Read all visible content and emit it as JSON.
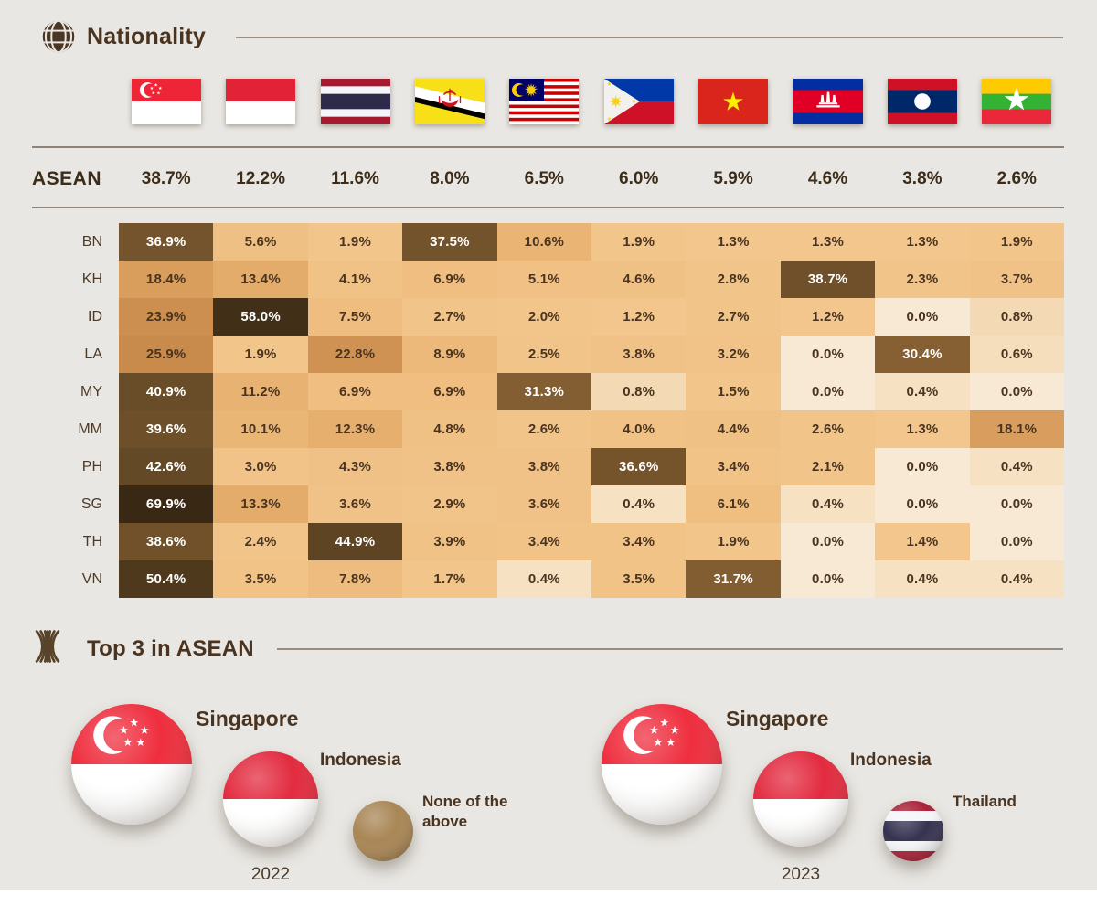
{
  "colors": {
    "background": "#e9e7e3",
    "text_brown": "#4a3420",
    "divider": "#8d8379",
    "heatmap_low": "#f7e9d3",
    "heatmap_base": "#efc084",
    "heatmap_high": "#281d0e",
    "none_circle": "#a5814e"
  },
  "header": {
    "title": "Nationality",
    "icon": "globe-icon"
  },
  "chart_data": {
    "type": "heatmap",
    "title": "Nationality",
    "value_format": "percent_1dp",
    "columns": [
      {
        "name": "Singapore",
        "code": "sg",
        "icon": "flag-singapore"
      },
      {
        "name": "Indonesia",
        "code": "id",
        "icon": "flag-indonesia"
      },
      {
        "name": "Thailand",
        "code": "th",
        "icon": "flag-thailand"
      },
      {
        "name": "Brunei",
        "code": "bn",
        "icon": "flag-brunei"
      },
      {
        "name": "Malaysia",
        "code": "my",
        "icon": "flag-malaysia"
      },
      {
        "name": "Philippines",
        "code": "ph",
        "icon": "flag-philippines"
      },
      {
        "name": "Vietnam",
        "code": "vn",
        "icon": "flag-vietnam"
      },
      {
        "name": "Cambodia",
        "code": "kh",
        "icon": "flag-cambodia"
      },
      {
        "name": "Laos",
        "code": "la",
        "icon": "flag-laos"
      },
      {
        "name": "Myanmar",
        "code": "mm",
        "icon": "flag-myanmar"
      }
    ],
    "asean_row": {
      "label": "ASEAN",
      "values": [
        38.7,
        12.2,
        11.6,
        8.0,
        6.5,
        6.0,
        5.9,
        4.6,
        3.8,
        2.6
      ]
    },
    "rows": [
      {
        "label": "BN",
        "values": [
          36.9,
          5.6,
          1.9,
          37.5,
          10.6,
          1.9,
          1.3,
          1.3,
          1.3,
          1.9
        ]
      },
      {
        "label": "KH",
        "values": [
          18.4,
          13.4,
          4.1,
          6.9,
          5.1,
          4.6,
          2.8,
          38.7,
          2.3,
          3.7
        ]
      },
      {
        "label": "ID",
        "values": [
          23.9,
          58.0,
          7.5,
          2.7,
          2.0,
          1.2,
          2.7,
          1.2,
          0.0,
          0.8
        ]
      },
      {
        "label": "LA",
        "values": [
          25.9,
          1.9,
          22.8,
          8.9,
          2.5,
          3.8,
          3.2,
          0.0,
          30.4,
          0.6
        ]
      },
      {
        "label": "MY",
        "values": [
          40.9,
          11.2,
          6.9,
          6.9,
          31.3,
          0.8,
          1.5,
          0.0,
          0.4,
          0.0
        ]
      },
      {
        "label": "MM",
        "values": [
          39.6,
          10.1,
          12.3,
          4.8,
          2.6,
          4.0,
          4.4,
          2.6,
          1.3,
          18.1
        ]
      },
      {
        "label": "PH",
        "values": [
          42.6,
          3.0,
          4.3,
          3.8,
          3.8,
          36.6,
          3.4,
          2.1,
          0.0,
          0.4
        ]
      },
      {
        "label": "SG",
        "values": [
          69.9,
          13.3,
          3.6,
          2.9,
          3.6,
          0.4,
          6.1,
          0.4,
          0.0,
          0.0
        ]
      },
      {
        "label": "TH",
        "values": [
          38.6,
          2.4,
          44.9,
          3.9,
          3.4,
          3.4,
          1.9,
          0.0,
          1.4,
          0.0
        ]
      },
      {
        "label": "VN",
        "values": [
          50.4,
          3.5,
          7.8,
          1.7,
          0.4,
          3.5,
          31.7,
          0.0,
          0.4,
          0.4
        ]
      }
    ]
  },
  "top3": {
    "title": "Top 3 in ASEAN",
    "icon": "asean-sheaf-icon",
    "groups": [
      {
        "year": "2022",
        "items": [
          {
            "rank": 1,
            "label": "Singapore",
            "flag": "sg"
          },
          {
            "rank": 2,
            "label": "Indonesia",
            "flag": "id"
          },
          {
            "rank": 3,
            "label": "None of the above",
            "flag": "none"
          }
        ]
      },
      {
        "year": "2023",
        "items": [
          {
            "rank": 1,
            "label": "Singapore",
            "flag": "sg"
          },
          {
            "rank": 2,
            "label": "Indonesia",
            "flag": "id"
          },
          {
            "rank": 3,
            "label": "Thailand",
            "flag": "th"
          }
        ]
      }
    ]
  }
}
